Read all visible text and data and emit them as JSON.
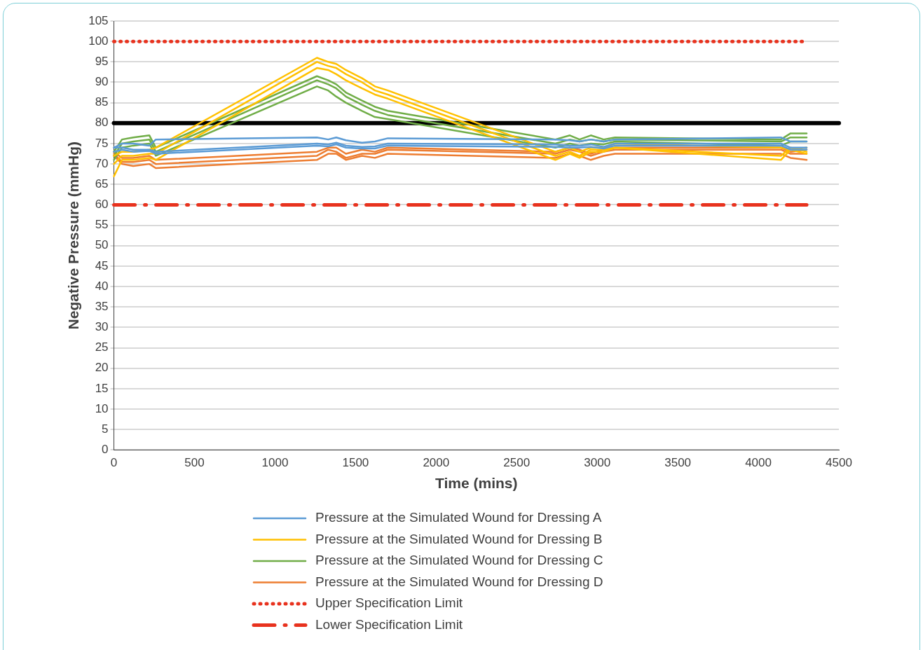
{
  "chart_data": {
    "type": "line",
    "xlabel": "Time (mins)",
    "ylabel": "Negative Pressure (mmHg)",
    "xlim": [
      0,
      4500
    ],
    "xticks": [
      0,
      500,
      1000,
      1500,
      2000,
      2500,
      3000,
      3500,
      4000,
      4500
    ],
    "ylim": [
      0,
      105
    ],
    "yticks": [
      0,
      5,
      10,
      15,
      20,
      25,
      30,
      35,
      40,
      45,
      50,
      55,
      60,
      65,
      70,
      75,
      80,
      85,
      90,
      95,
      100,
      105
    ],
    "grid": "y",
    "legend": "bottom",
    "marker": "none",
    "line_style": "solid",
    "x": [
      0,
      50,
      120,
      220,
      260,
      1260,
      1330,
      1380,
      1440,
      1540,
      1620,
      1700,
      2740,
      2830,
      2890,
      2960,
      3040,
      3110,
      4140,
      4200,
      4300
    ],
    "series": [
      {
        "name": "Pressure at the Simulated Wound for Dressing A",
        "color": "#5b9bd5",
        "values": [
          74,
          75,
          75,
          74.5,
          76,
          76.5,
          76,
          76.5,
          75.8,
          75.2,
          75.5,
          76.3,
          76,
          75.8,
          75.5,
          76,
          75.5,
          76,
          76.5,
          75.5,
          75.5
        ]
      },
      {
        "color": "#5b9bd5",
        "values": [
          74,
          74,
          73.5,
          73.5,
          73,
          75,
          74.8,
          75.2,
          74.5,
          74.2,
          74.3,
          75,
          74.8,
          74.5,
          74.5,
          74.8,
          74.2,
          75,
          75,
          74,
          74
        ]
      },
      {
        "color": "#5b9bd5",
        "values": [
          73,
          73.5,
          73,
          73.2,
          72.5,
          74.5,
          74.3,
          74.8,
          74,
          73.8,
          73.8,
          74.5,
          74.2,
          74,
          74,
          74.2,
          73.8,
          74.5,
          74.5,
          73.5,
          73.5
        ]
      },
      {
        "name": "Pressure at the Simulated Wound for Dressing B",
        "color": "#ffc000",
        "values": [
          72,
          73,
          73,
          73.5,
          74,
          96,
          95,
          94.5,
          93,
          91,
          89,
          88,
          73,
          74,
          73,
          74,
          74,
          75,
          74,
          73.5,
          74
        ]
      },
      {
        "color": "#ffc000",
        "values": [
          70,
          72,
          72,
          72.5,
          72.5,
          95,
          94,
          93.5,
          92,
          90,
          88,
          87,
          72,
          73,
          72,
          73.5,
          73.5,
          74,
          72,
          74,
          73
        ]
      },
      {
        "color": "#ffc000",
        "values": [
          67,
          71,
          71,
          71.5,
          71,
          93.5,
          93,
          92,
          90.5,
          88.5,
          87,
          86,
          71,
          72.5,
          71.5,
          73,
          73,
          74,
          71,
          73.5,
          72.5
        ]
      },
      {
        "name": "Pressure at the Simulated Wound for Dressing C",
        "color": "#70ad47",
        "values": [
          73,
          76,
          76.5,
          77,
          74,
          91.5,
          90.5,
          89.5,
          87.5,
          85.5,
          84,
          83,
          76,
          77,
          76,
          77,
          76,
          76.5,
          76,
          77.5,
          77.5
        ]
      },
      {
        "color": "#70ad47",
        "values": [
          72,
          75,
          75.5,
          76,
          73,
          90.5,
          89.5,
          88.5,
          86.5,
          84.5,
          83,
          82,
          75,
          76,
          75.5,
          76,
          75.5,
          76,
          75.5,
          76.5,
          76.5
        ]
      },
      {
        "color": "#70ad47",
        "values": [
          71,
          74,
          74.5,
          75,
          72,
          89,
          88,
          86.5,
          85,
          83,
          81.5,
          81,
          74,
          75,
          74.5,
          75,
          74.8,
          75.5,
          74.5,
          75.5,
          75.5
        ]
      },
      {
        "name": "Pressure at the Simulated Wound for Dressing D",
        "color": "#ed7d31",
        "values": [
          73,
          71.5,
          71.5,
          72,
          71,
          73,
          74,
          74,
          72.5,
          73.5,
          73,
          74,
          73,
          74,
          73.5,
          72.5,
          73.5,
          74,
          74,
          73,
          73.5
        ]
      },
      {
        "color": "#ed7d31",
        "values": [
          72.5,
          70.5,
          70.5,
          71,
          70,
          72,
          73.5,
          73,
          71.5,
          72.5,
          72.5,
          73.5,
          72.5,
          73.5,
          73,
          72,
          73,
          73.5,
          73.5,
          72.5,
          72.5
        ]
      },
      {
        "color": "#ed7d31",
        "values": [
          72,
          70,
          69.5,
          70,
          69,
          71,
          72.5,
          72.5,
          71,
          72,
          71.5,
          72.5,
          71.5,
          72.5,
          72,
          71,
          72,
          72.5,
          72.5,
          71.5,
          71
        ]
      },
      {
        "name": "Upper Specification Limit",
        "color": "#e8321e",
        "line_style": "dotted",
        "values": [
          100,
          100,
          100,
          100,
          100,
          100,
          100,
          100,
          100,
          100,
          100,
          100,
          100,
          100,
          100,
          100,
          100,
          100,
          100,
          100,
          100
        ]
      },
      {
        "name": "Lower Specification Limit",
        "color": "#e8321e",
        "line_style": "dashed",
        "values": [
          60,
          60,
          60,
          60,
          60,
          60,
          60,
          60,
          60,
          60,
          60,
          60,
          60,
          60,
          60,
          60,
          60,
          60,
          60,
          60,
          60
        ]
      }
    ],
    "ref_lines": [
      {
        "axis": "y",
        "value": 80,
        "color": "#000000"
      }
    ]
  }
}
